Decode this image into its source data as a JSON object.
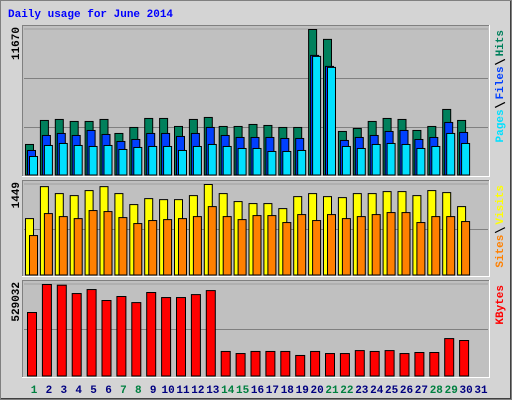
{
  "chart_data": [
    {
      "type": "bar",
      "title": "Daily usage for June 2014",
      "ylim": [
        0,
        11670
      ],
      "yticks": [
        11670
      ],
      "series": [
        {
          "name": "Hits",
          "color": "#00805c",
          "values": [
            2480,
            4400,
            4480,
            4320,
            4320,
            4480,
            3360,
            3840,
            4560,
            4560,
            3920,
            4480,
            4640,
            3920,
            3920,
            4080,
            4000,
            3840,
            3840,
            11670,
            10880,
            3520,
            3760,
            4320,
            4560,
            4480,
            3600,
            3920,
            5280,
            4400,
            0
          ]
        },
        {
          "name": "Files",
          "color": "#0040ff",
          "values": [
            2000,
            3200,
            3360,
            3200,
            3600,
            3280,
            2720,
            2880,
            3360,
            3360,
            3120,
            3360,
            3840,
            3200,
            3040,
            3040,
            3040,
            2960,
            2960,
            9600,
            8720,
            2800,
            3040,
            3200,
            3520,
            3600,
            2880,
            3040,
            4240,
            3440,
            0
          ]
        },
        {
          "name": "Pages",
          "color": "#00e0ff",
          "values": [
            1520,
            2400,
            2560,
            2400,
            2320,
            2400,
            2080,
            2240,
            2320,
            2320,
            2000,
            2320,
            2480,
            2320,
            2160,
            2160,
            1920,
            1920,
            2000,
            9520,
            8640,
            2320,
            2160,
            2480,
            2560,
            2480,
            2160,
            2320,
            3360,
            2560,
            0
          ]
        }
      ]
    },
    {
      "type": "bar",
      "ylim": [
        0,
        1449
      ],
      "yticks": [
        1449
      ],
      "series": [
        {
          "name": "Visits",
          "color": "#ffff00",
          "values": [
            906,
            1415,
            1304,
            1272,
            1352,
            1415,
            1304,
            1129,
            1224,
            1208,
            1208,
            1272,
            1449,
            1304,
            1177,
            1145,
            1145,
            1065,
            1256,
            1304,
            1256,
            1240,
            1304,
            1304,
            1336,
            1336,
            1272,
            1352,
            1320,
            1097,
            0
          ]
        },
        {
          "name": "Sites",
          "color": "#ff8000",
          "values": [
            636,
            986,
            938,
            906,
            1034,
            1018,
            922,
            827,
            875,
            890,
            906,
            938,
            1097,
            938,
            890,
            954,
            954,
            843,
            970,
            875,
            970,
            906,
            938,
            970,
            1002,
            1002,
            843,
            938,
            938,
            859,
            0
          ]
        }
      ]
    },
    {
      "type": "bar",
      "ylim": [
        0,
        529032
      ],
      "yticks": [
        529032
      ],
      "categories": [
        "1",
        "2",
        "3",
        "4",
        "5",
        "6",
        "7",
        "8",
        "9",
        "10",
        "11",
        "12",
        "13",
        "14",
        "15",
        "16",
        "17",
        "18",
        "19",
        "20",
        "21",
        "22",
        "23",
        "24",
        "25",
        "26",
        "27",
        "28",
        "29",
        "30",
        "31"
      ],
      "category_colors": [
        "#008040",
        "#000080",
        "#000080",
        "#000080",
        "#000080",
        "#000080",
        "#008040",
        "#008040",
        "#000080",
        "#000080",
        "#000080",
        "#000080",
        "#000080",
        "#008040",
        "#008040",
        "#000080",
        "#000080",
        "#000080",
        "#000080",
        "#000080",
        "#008040",
        "#008040",
        "#000080",
        "#000080",
        "#000080",
        "#000080",
        "#000080",
        "#008040",
        "#008040",
        "#000080",
        "#000080"
      ],
      "series": [
        {
          "name": "KBytes",
          "color": "#ff0000",
          "values": [
            368000,
            529032,
            525000,
            477000,
            500000,
            437000,
            460000,
            425000,
            483000,
            454000,
            454000,
            471000,
            494000,
            144000,
            132000,
            144000,
            144000,
            144000,
            121000,
            144000,
            132000,
            132000,
            149000,
            144000,
            149000,
            132000,
            138000,
            138000,
            218000,
            207000,
            0
          ]
        }
      ]
    }
  ]
}
